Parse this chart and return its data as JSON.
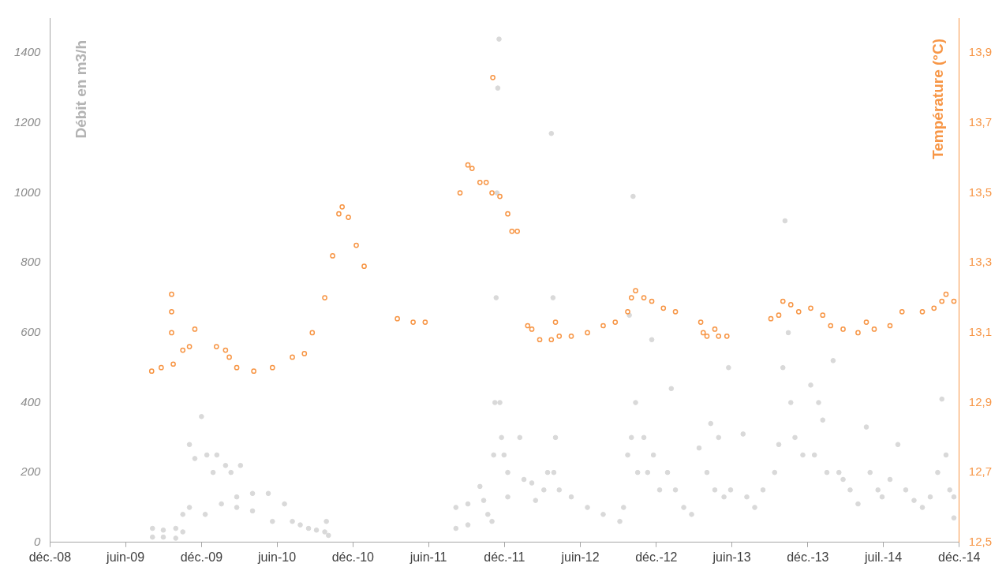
{
  "chart_data": {
    "type": "scatter",
    "ylabel": "Débit en m3/h",
    "y2label": "Température (°C)",
    "xlim": [
      "2008-12-01",
      "2014-12-01"
    ],
    "xticks": [
      {
        "value": "2008-12-01",
        "label": "déc.-08"
      },
      {
        "value": "2009-06-01",
        "label": "juin-09"
      },
      {
        "value": "2009-12-01",
        "label": "déc.-09"
      },
      {
        "value": "2010-06-01",
        "label": "juin-10"
      },
      {
        "value": "2010-12-01",
        "label": "déc.-10"
      },
      {
        "value": "2011-06-01",
        "label": "juin-11"
      },
      {
        "value": "2011-12-01",
        "label": "déc.-11"
      },
      {
        "value": "2012-06-01",
        "label": "juin-12"
      },
      {
        "value": "2012-12-01",
        "label": "déc.-12"
      },
      {
        "value": "2013-06-01",
        "label": "juin-13"
      },
      {
        "value": "2013-12-01",
        "label": "déc.-13"
      },
      {
        "value": "2014-06-01",
        "label": "juil.-14"
      },
      {
        "value": "2014-12-01",
        "label": "déc.-14"
      }
    ],
    "ylim": [
      0,
      1500
    ],
    "yticks": [
      0,
      200,
      400,
      600,
      800,
      1000,
      1200,
      1400
    ],
    "y2lim": [
      12.5,
      14.0
    ],
    "y2ticks": [
      {
        "value": 12.5,
        "label": "12,5"
      },
      {
        "value": 12.7,
        "label": "12,7"
      },
      {
        "value": 12.9,
        "label": "12,9"
      },
      {
        "value": 13.1,
        "label": "13,1"
      },
      {
        "value": 13.3,
        "label": "13,3"
      },
      {
        "value": 13.5,
        "label": "13,5"
      },
      {
        "value": 13.7,
        "label": "13,7"
      },
      {
        "value": 13.9,
        "label": "13,9"
      }
    ],
    "grid": false,
    "legend": false,
    "marker": "circle",
    "series": [
      {
        "color": "#d9d9d9",
        "axis": "y",
        "x": [
          "2009-08-05",
          "2009-08-05",
          "2009-08-31",
          "2009-08-31",
          "2009-09-30",
          "2009-09-30",
          "2009-10-17",
          "2009-10-17",
          "2009-11-02",
          "2009-11-02",
          "2009-11-15",
          "2009-12-01",
          "2009-12-10",
          "2009-12-14",
          "2009-12-29",
          "2010-01-07",
          "2010-01-18",
          "2010-01-28",
          "2010-02-10",
          "2010-02-24",
          "2010-02-24",
          "2010-03-05",
          "2010-04-03",
          "2010-04-03",
          "2010-05-11",
          "2010-05-21",
          "2010-06-19",
          "2010-07-08",
          "2010-07-27",
          "2010-08-16",
          "2010-09-04",
          "2010-09-24",
          "2010-09-28",
          "2010-10-03",
          "2011-08-06",
          "2011-08-06",
          "2011-09-04",
          "2011-09-04",
          "2011-10-03",
          "2011-10-12",
          "2011-10-22",
          "2011-11-01",
          "2011-11-05",
          "2011-11-08",
          "2011-11-11",
          "2011-11-13",
          "2011-11-15",
          "2011-11-18",
          "2011-11-20",
          "2011-11-24",
          "2011-11-30",
          "2011-12-09",
          "2011-12-09",
          "2012-01-07",
          "2012-01-17",
          "2012-02-05",
          "2012-02-14",
          "2012-03-05",
          "2012-03-14",
          "2012-03-23",
          "2012-03-27",
          "2012-03-29",
          "2012-04-02",
          "2012-04-11",
          "2012-05-10",
          "2012-06-18",
          "2012-07-26",
          "2012-09-04",
          "2012-09-13",
          "2012-09-23",
          "2012-09-27",
          "2012-10-02",
          "2012-10-06",
          "2012-10-12",
          "2012-10-17",
          "2012-11-01",
          "2012-11-10",
          "2012-11-20",
          "2012-11-24",
          "2012-12-09",
          "2012-12-28",
          "2013-01-06",
          "2013-01-16",
          "2013-02-05",
          "2013-02-24",
          "2013-03-14",
          "2013-04-02",
          "2013-04-11",
          "2013-04-21",
          "2013-04-30",
          "2013-05-13",
          "2013-05-24",
          "2013-05-29",
          "2013-06-28",
          "2013-07-07",
          "2013-07-26",
          "2013-08-15",
          "2013-09-12",
          "2013-09-22",
          "2013-10-02",
          "2013-10-07",
          "2013-10-15",
          "2013-10-21",
          "2013-10-31",
          "2013-11-19",
          "2013-12-08",
          "2013-12-17",
          "2013-12-27",
          "2014-01-06",
          "2014-01-16",
          "2014-01-31",
          "2014-02-14",
          "2014-02-24",
          "2014-03-13",
          "2014-04-01",
          "2014-04-21",
          "2014-04-30",
          "2014-05-19",
          "2014-05-29",
          "2014-06-17",
          "2014-07-06",
          "2014-07-25",
          "2014-08-14",
          "2014-09-03",
          "2014-09-22",
          "2014-10-10",
          "2014-10-20",
          "2014-10-30",
          "2014-11-08",
          "2014-11-18",
          "2014-11-18"
        ],
        "values": [
          40,
          15,
          35,
          15,
          40,
          12,
          80,
          30,
          280,
          100,
          240,
          360,
          80,
          250,
          200,
          250,
          110,
          220,
          200,
          130,
          100,
          220,
          140,
          90,
          140,
          60,
          110,
          60,
          50,
          40,
          35,
          30,
          60,
          20,
          100,
          40,
          110,
          50,
          160,
          120,
          80,
          60,
          250,
          400,
          700,
          1000,
          1300,
          1440,
          400,
          300,
          250,
          200,
          130,
          300,
          180,
          170,
          120,
          150,
          200,
          1170,
          700,
          200,
          300,
          150,
          130,
          100,
          80,
          60,
          100,
          250,
          650,
          300,
          990,
          400,
          200,
          300,
          200,
          580,
          250,
          150,
          200,
          440,
          150,
          100,
          80,
          270,
          200,
          340,
          150,
          300,
          130,
          500,
          150,
          310,
          130,
          100,
          150,
          200,
          280,
          500,
          920,
          600,
          400,
          300,
          250,
          450,
          250,
          400,
          350,
          200,
          520,
          200,
          180,
          150,
          110,
          330,
          200,
          150,
          130,
          180,
          280,
          150,
          120,
          100,
          130,
          200,
          410,
          250,
          150,
          70,
          130
        ]
      },
      {
        "color": "#f79646",
        "axis": "y2",
        "x": [
          "2009-08-03",
          "2009-08-26",
          "2009-09-20",
          "2009-09-20",
          "2009-09-20",
          "2009-09-24",
          "2009-10-17",
          "2009-11-02",
          "2009-11-15",
          "2010-01-06",
          "2010-01-28",
          "2010-02-06",
          "2010-02-24",
          "2010-04-06",
          "2010-05-21",
          "2010-07-08",
          "2010-08-06",
          "2010-08-25",
          "2010-09-24",
          "2010-10-13",
          "2010-10-28",
          "2010-11-05",
          "2010-11-20",
          "2010-12-09",
          "2010-12-28",
          "2011-03-18",
          "2011-04-25",
          "2011-05-24",
          "2011-08-16",
          "2011-09-04",
          "2011-09-14",
          "2011-10-03",
          "2011-10-18",
          "2011-11-01",
          "2011-11-03",
          "2011-11-20",
          "2011-12-09",
          "2011-12-19",
          "2012-01-01",
          "2012-01-26",
          "2012-02-05",
          "2012-02-24",
          "2012-03-23",
          "2012-04-02",
          "2012-04-11",
          "2012-05-10",
          "2012-06-18",
          "2012-07-26",
          "2012-08-24",
          "2012-09-23",
          "2012-10-02",
          "2012-10-12",
          "2012-11-01",
          "2012-11-20",
          "2012-12-18",
          "2013-01-16",
          "2013-03-18",
          "2013-03-24",
          "2013-04-02",
          "2013-04-21",
          "2013-04-30",
          "2013-05-20",
          "2013-09-03",
          "2013-09-22",
          "2013-10-02",
          "2013-10-21",
          "2013-11-09",
          "2013-12-08",
          "2014-01-06",
          "2014-01-25",
          "2014-02-24",
          "2014-04-01",
          "2014-04-21",
          "2014-05-10",
          "2014-06-17",
          "2014-07-16",
          "2014-09-03",
          "2014-10-01",
          "2014-10-20",
          "2014-10-30",
          "2014-11-18"
        ],
        "values": [
          12.99,
          13.0,
          13.21,
          13.16,
          13.1,
          13.01,
          13.05,
          13.06,
          13.11,
          13.06,
          13.05,
          13.03,
          13.0,
          12.99,
          13.0,
          13.03,
          13.04,
          13.1,
          13.2,
          13.32,
          13.44,
          13.46,
          13.43,
          13.35,
          13.29,
          13.14,
          13.13,
          13.13,
          13.5,
          13.58,
          13.57,
          13.53,
          13.53,
          13.5,
          13.83,
          13.49,
          13.44,
          13.39,
          13.39,
          13.12,
          13.11,
          13.08,
          13.08,
          13.13,
          13.09,
          13.09,
          13.1,
          13.12,
          13.13,
          13.16,
          13.2,
          13.22,
          13.2,
          13.19,
          13.17,
          13.16,
          13.13,
          13.1,
          13.09,
          13.11,
          13.09,
          13.09,
          13.14,
          13.15,
          13.19,
          13.18,
          13.16,
          13.17,
          13.15,
          13.12,
          13.11,
          13.1,
          13.13,
          13.11,
          13.12,
          13.16,
          13.16,
          13.17,
          13.19,
          13.21,
          13.19
        ]
      }
    ]
  }
}
